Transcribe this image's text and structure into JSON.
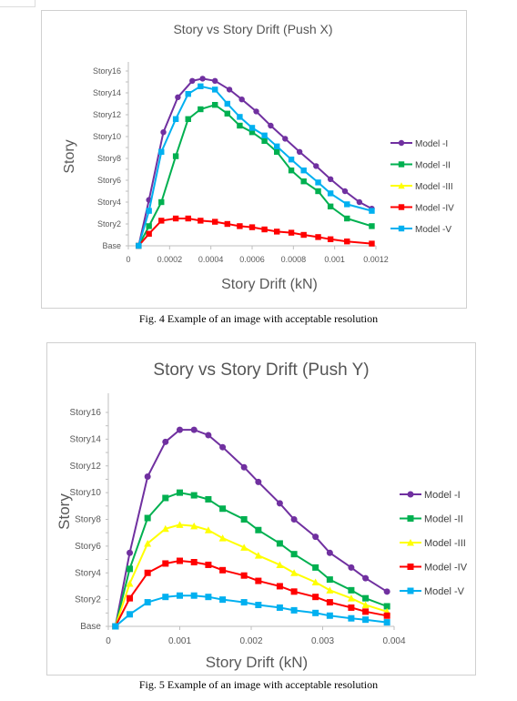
{
  "figures": [
    {
      "caption": "Fig. 4 Example of an image with acceptable resolution"
    },
    {
      "caption": "Fig. 5 Example of an image with acceptable resolution"
    }
  ],
  "chart_data": [
    {
      "type": "line",
      "title": "Story vs Story Drift (Push X)",
      "xlabel": "Story Drift (kN)",
      "ylabel": "Story",
      "xlim": [
        0,
        0.0012
      ],
      "xticks": [
        "0",
        "0.0002",
        "0.0004",
        "0.0006",
        "0.0008",
        "0.001",
        "0.0012"
      ],
      "yticks": [
        "Base",
        "Story2",
        "Story4",
        "Story6",
        "Story8",
        "Story10",
        "Story12",
        "Story14",
        "Story16"
      ],
      "ylim": [
        0,
        16
      ],
      "grid": false,
      "legend": "right",
      "series": [
        {
          "name": "Model -I",
          "color": "#7030a0",
          "marker": "circle",
          "points": [
            [
              5e-05,
              0
            ],
            [
              0.0001,
              4.2
            ],
            [
              0.00017,
              10.4
            ],
            [
              0.00024,
              13.6
            ],
            [
              0.00031,
              15.1
            ],
            [
              0.00036,
              15.3
            ],
            [
              0.00042,
              15.1
            ],
            [
              0.00049,
              14.3
            ],
            [
              0.00055,
              13.4
            ],
            [
              0.00062,
              12.3
            ],
            [
              0.00069,
              11.0
            ],
            [
              0.00076,
              9.8
            ],
            [
              0.00083,
              8.6
            ],
            [
              0.00091,
              7.3
            ],
            [
              0.00098,
              6.1
            ],
            [
              0.00105,
              5.0
            ],
            [
              0.00112,
              4.0
            ],
            [
              0.00118,
              3.4
            ]
          ]
        },
        {
          "name": "Model -II",
          "color": "#00b050",
          "marker": "square",
          "points": [
            [
              5e-05,
              0
            ],
            [
              0.0001,
              1.8
            ],
            [
              0.00016,
              4.0
            ],
            [
              0.00023,
              8.2
            ],
            [
              0.00029,
              11.6
            ],
            [
              0.00035,
              12.5
            ],
            [
              0.00042,
              12.9
            ],
            [
              0.00048,
              12.1
            ],
            [
              0.00054,
              11.0
            ],
            [
              0.0006,
              10.4
            ],
            [
              0.00066,
              9.6
            ],
            [
              0.00072,
              8.6
            ],
            [
              0.00079,
              6.9
            ],
            [
              0.00085,
              5.9
            ],
            [
              0.00092,
              5.0
            ],
            [
              0.00098,
              3.6
            ],
            [
              0.00106,
              2.5
            ],
            [
              0.00118,
              1.8
            ]
          ]
        },
        {
          "name": "Model -III",
          "color": "#ffff00",
          "marker": "triangle",
          "points": []
        },
        {
          "name": "Model -IV",
          "color": "#ff0000",
          "marker": "square",
          "points": [
            [
              5e-05,
              0
            ],
            [
              0.0001,
              1.1
            ],
            [
              0.00016,
              2.3
            ],
            [
              0.00023,
              2.5
            ],
            [
              0.00029,
              2.5
            ],
            [
              0.00035,
              2.3
            ],
            [
              0.00042,
              2.2
            ],
            [
              0.00048,
              2.0
            ],
            [
              0.00054,
              1.8
            ],
            [
              0.0006,
              1.7
            ],
            [
              0.00066,
              1.5
            ],
            [
              0.00072,
              1.3
            ],
            [
              0.00079,
              1.2
            ],
            [
              0.00085,
              1.0
            ],
            [
              0.00092,
              0.8
            ],
            [
              0.00098,
              0.6
            ],
            [
              0.00106,
              0.4
            ],
            [
              0.00118,
              0.2
            ]
          ]
        },
        {
          "name": "Model -V",
          "color": "#00b0f0",
          "marker": "square",
          "points": [
            [
              5e-05,
              0
            ],
            [
              0.0001,
              3.2
            ],
            [
              0.00016,
              8.6
            ],
            [
              0.00023,
              11.6
            ],
            [
              0.00029,
              13.9
            ],
            [
              0.00035,
              14.6
            ],
            [
              0.00042,
              14.3
            ],
            [
              0.00048,
              13.0
            ],
            [
              0.00054,
              11.8
            ],
            [
              0.0006,
              10.8
            ],
            [
              0.00066,
              10.1
            ],
            [
              0.00072,
              9.1
            ],
            [
              0.00079,
              7.9
            ],
            [
              0.00085,
              6.9
            ],
            [
              0.00092,
              5.8
            ],
            [
              0.00098,
              4.8
            ],
            [
              0.00106,
              3.8
            ],
            [
              0.00118,
              3.2
            ]
          ]
        }
      ]
    },
    {
      "type": "line",
      "title": "Story vs Story Drift (Push Y)",
      "xlabel": "Story Drift (kN)",
      "ylabel": "Story",
      "xlim": [
        0,
        0.004
      ],
      "xticks": [
        "0",
        "0.001",
        "0.002",
        "0.003",
        "0.004"
      ],
      "yticks": [
        "Base",
        "Story2",
        "Story4",
        "Story6",
        "Story8",
        "Story10",
        "Story12",
        "Story14",
        "Story16"
      ],
      "ylim": [
        0,
        16
      ],
      "grid": false,
      "legend": "right",
      "series": [
        {
          "name": "Model -I",
          "color": "#7030a0",
          "marker": "circle",
          "points": [
            [
              0.0001,
              0
            ],
            [
              0.0003,
              5.5
            ],
            [
              0.00055,
              11.2
            ],
            [
              0.0008,
              13.8
            ],
            [
              0.001,
              14.7
            ],
            [
              0.0012,
              14.7
            ],
            [
              0.0014,
              14.3
            ],
            [
              0.0016,
              13.4
            ],
            [
              0.0019,
              11.9
            ],
            [
              0.0021,
              10.8
            ],
            [
              0.0024,
              9.2
            ],
            [
              0.0026,
              8.0
            ],
            [
              0.0029,
              6.7
            ],
            [
              0.0031,
              5.5
            ],
            [
              0.0034,
              4.4
            ],
            [
              0.0036,
              3.6
            ],
            [
              0.0039,
              2.6
            ]
          ]
        },
        {
          "name": "Model -II",
          "color": "#00b050",
          "marker": "square",
          "points": [
            [
              0.0001,
              0
            ],
            [
              0.0003,
              4.3
            ],
            [
              0.00055,
              8.1
            ],
            [
              0.0008,
              9.6
            ],
            [
              0.001,
              10.0
            ],
            [
              0.0012,
              9.8
            ],
            [
              0.0014,
              9.5
            ],
            [
              0.0016,
              8.8
            ],
            [
              0.0019,
              8.0
            ],
            [
              0.0021,
              7.2
            ],
            [
              0.0024,
              6.2
            ],
            [
              0.0026,
              5.4
            ],
            [
              0.0029,
              4.4
            ],
            [
              0.0031,
              3.5
            ],
            [
              0.0034,
              2.7
            ],
            [
              0.0036,
              2.1
            ],
            [
              0.0039,
              1.5
            ]
          ]
        },
        {
          "name": "Model -III",
          "color": "#ffff00",
          "marker": "triangle",
          "points": [
            [
              0.0001,
              0
            ],
            [
              0.0003,
              3.2
            ],
            [
              0.00055,
              6.2
            ],
            [
              0.0008,
              7.3
            ],
            [
              0.001,
              7.6
            ],
            [
              0.0012,
              7.5
            ],
            [
              0.0014,
              7.2
            ],
            [
              0.0016,
              6.6
            ],
            [
              0.0019,
              5.9
            ],
            [
              0.0021,
              5.3
            ],
            [
              0.0024,
              4.6
            ],
            [
              0.0026,
              4.0
            ],
            [
              0.0029,
              3.3
            ],
            [
              0.0031,
              2.7
            ],
            [
              0.0034,
              2.1
            ],
            [
              0.0036,
              1.6
            ],
            [
              0.0039,
              1.1
            ]
          ]
        },
        {
          "name": "Model -IV",
          "color": "#ff0000",
          "marker": "square",
          "points": [
            [
              0.0001,
              0
            ],
            [
              0.0003,
              2.1
            ],
            [
              0.00055,
              4.0
            ],
            [
              0.0008,
              4.7
            ],
            [
              0.001,
              4.9
            ],
            [
              0.0012,
              4.8
            ],
            [
              0.0014,
              4.6
            ],
            [
              0.0016,
              4.2
            ],
            [
              0.0019,
              3.8
            ],
            [
              0.0021,
              3.4
            ],
            [
              0.0024,
              3.0
            ],
            [
              0.0026,
              2.6
            ],
            [
              0.0029,
              2.2
            ],
            [
              0.0031,
              1.8
            ],
            [
              0.0034,
              1.4
            ],
            [
              0.0036,
              1.1
            ],
            [
              0.0039,
              0.8
            ]
          ]
        },
        {
          "name": "Model -V",
          "color": "#00b0f0",
          "marker": "square",
          "points": [
            [
              0.0001,
              0
            ],
            [
              0.0003,
              0.9
            ],
            [
              0.00055,
              1.8
            ],
            [
              0.0008,
              2.2
            ],
            [
              0.001,
              2.3
            ],
            [
              0.0012,
              2.3
            ],
            [
              0.0014,
              2.2
            ],
            [
              0.0016,
              2.0
            ],
            [
              0.0019,
              1.8
            ],
            [
              0.0021,
              1.6
            ],
            [
              0.0024,
              1.4
            ],
            [
              0.0026,
              1.2
            ],
            [
              0.0029,
              1.0
            ],
            [
              0.0031,
              0.8
            ],
            [
              0.0034,
              0.6
            ],
            [
              0.0036,
              0.5
            ],
            [
              0.0039,
              0.3
            ]
          ]
        }
      ]
    }
  ]
}
